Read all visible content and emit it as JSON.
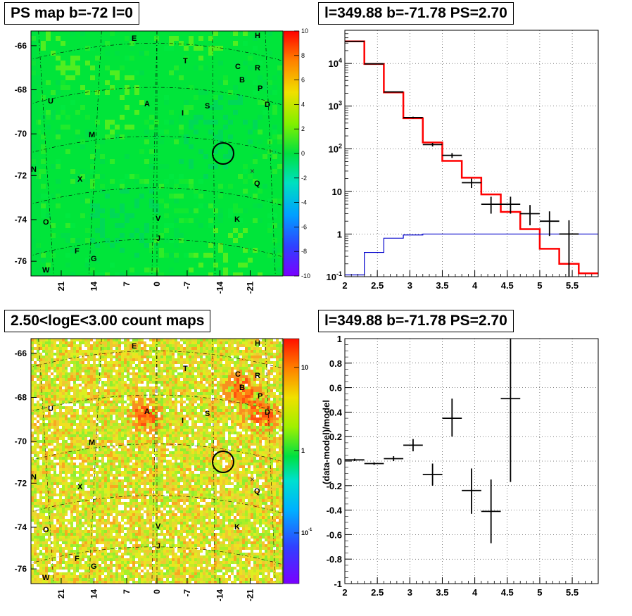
{
  "panels": {
    "ps_map_title": "PS map b=-72 l=0",
    "count_map_title": "2.50<logE<3.00 count maps",
    "spectrum_title": "l=349.88 b=-71.78 PS=2.70",
    "residual_title": "l=349.88 b=-71.78 PS=2.70"
  },
  "chart_data": [
    {
      "name": "ps_map",
      "type": "heatmap",
      "title": "PS map b=-72 l=0",
      "y_ticks": [
        "-66",
        "-68",
        "-70",
        "-72",
        "-74",
        "-76"
      ],
      "x_ticks": [
        "21",
        "14",
        "7",
        "0",
        "-7",
        "-14",
        "-21"
      ],
      "colorbar": {
        "min": -10,
        "max": 10,
        "ticks": [
          "10",
          "8",
          "6",
          "4",
          "2",
          "0",
          "-2",
          "-4",
          "-6",
          "-8",
          "-10"
        ]
      },
      "source_labels": [
        "E",
        "H",
        "T",
        "C",
        "R",
        "B",
        "P",
        "D",
        "U",
        "A",
        "I",
        "S",
        "M",
        "N",
        "X",
        "Q",
        "O",
        "V",
        "K",
        "J",
        "F",
        "G",
        "W"
      ],
      "marker": {
        "l": 349.88,
        "b": -71.78
      }
    },
    {
      "name": "spectrum",
      "type": "line",
      "title": "l=349.88 b=-71.78 PS=2.70",
      "xlim": [
        2,
        5.9
      ],
      "x_ticks": [
        "2",
        "2.5",
        "3",
        "3.5",
        "4",
        "4.5",
        "5",
        "5.5"
      ],
      "y_scale": "log",
      "ylim": [
        0.1,
        60000
      ],
      "y_ticks": [
        "10^-1",
        "1",
        "10",
        "10^2",
        "10^3",
        "10^4"
      ],
      "grid": true,
      "series": [
        {
          "color": "#ff0000",
          "style": "step",
          "edges": [
            2.0,
            2.3,
            2.6,
            2.9,
            3.2,
            3.5,
            3.8,
            4.1,
            4.4,
            4.7,
            5.0,
            5.3,
            5.6,
            5.9
          ],
          "values": [
            33000,
            9700,
            2100,
            520,
            140,
            52,
            21,
            8.5,
            3.3,
            1.3,
            0.45,
            0.2,
            0.12
          ]
        },
        {
          "color": "#0000cc",
          "style": "step",
          "edges": [
            2.0,
            2.3,
            2.6,
            2.9,
            3.2,
            3.5,
            3.8,
            4.1,
            4.4,
            4.7,
            5.0,
            5.3,
            5.6,
            5.9
          ],
          "values": [
            0.11,
            0.37,
            0.8,
            0.95,
            1.0,
            1.0,
            1.0,
            1.0,
            1.0,
            1.0,
            1.0,
            1.0,
            1.0
          ]
        },
        {
          "color": "#000000",
          "style": "errorbar",
          "points": [
            {
              "x": 2.15,
              "y": 33000,
              "xerr": 0.15,
              "ylo": 32500,
              "yhi": 33500
            },
            {
              "x": 2.45,
              "y": 9800,
              "xerr": 0.15,
              "ylo": 9600,
              "yhi": 10000
            },
            {
              "x": 2.75,
              "y": 2150,
              "xerr": 0.15,
              "ylo": 2100,
              "yhi": 2200
            },
            {
              "x": 3.05,
              "y": 540,
              "xerr": 0.15,
              "ylo": 515,
              "yhi": 565
            },
            {
              "x": 3.35,
              "y": 125,
              "xerr": 0.15,
              "ylo": 113,
              "yhi": 137
            },
            {
              "x": 3.65,
              "y": 70,
              "xerr": 0.15,
              "ylo": 61,
              "yhi": 79
            },
            {
              "x": 3.95,
              "y": 16,
              "xerr": 0.15,
              "ylo": 12,
              "yhi": 20
            },
            {
              "x": 4.25,
              "y": 5,
              "xerr": 0.15,
              "ylo": 3,
              "yhi": 7.5
            },
            {
              "x": 4.55,
              "y": 5,
              "xerr": 0.15,
              "ylo": 3,
              "yhi": 7.5
            },
            {
              "x": 4.85,
              "y": 3,
              "xerr": 0.15,
              "ylo": 1.6,
              "yhi": 4.8
            },
            {
              "x": 5.15,
              "y": 2,
              "xerr": 0.15,
              "ylo": 0.9,
              "yhi": 3.4
            },
            {
              "x": 5.45,
              "y": 1,
              "xerr": 0.15,
              "ylo": 0.1,
              "yhi": 2.1
            }
          ]
        }
      ]
    },
    {
      "name": "count_map",
      "type": "heatmap",
      "title": "2.50<logE<3.00 count maps",
      "y_ticks": [
        "-66",
        "-68",
        "-70",
        "-72",
        "-74",
        "-76"
      ],
      "x_ticks": [
        "21",
        "14",
        "7",
        "0",
        "-7",
        "-14",
        "-21"
      ],
      "colorbar": {
        "scale": "log",
        "ticks": [
          "10",
          "1",
          "10^-1"
        ]
      },
      "source_labels": [
        "E",
        "H",
        "T",
        "C",
        "R",
        "B",
        "P",
        "D",
        "U",
        "A",
        "I",
        "S",
        "M",
        "N",
        "X",
        "Q",
        "O",
        "V",
        "K",
        "J",
        "F",
        "G",
        "W"
      ],
      "marker": {
        "l": 349.88,
        "b": -71.78
      }
    },
    {
      "name": "residual",
      "type": "scatter",
      "title": "l=349.88 b=-71.78 PS=2.70",
      "ylabel": "(data-model)/model",
      "xlim": [
        2,
        5.9
      ],
      "ylim": [
        -1,
        1
      ],
      "x_ticks": [
        "2",
        "2.5",
        "3",
        "3.5",
        "4",
        "4.5",
        "5",
        "5.5"
      ],
      "y_ticks": [
        "1",
        "0.8",
        "0.6",
        "0.4",
        "0.2",
        "0",
        "-0.2",
        "-0.4",
        "-0.6",
        "-0.8",
        "-1"
      ],
      "grid": true,
      "points": [
        {
          "x": 2.15,
          "y": 0.01,
          "xerr": 0.15,
          "ylo": 0.0,
          "yhi": 0.02
        },
        {
          "x": 2.45,
          "y": -0.02,
          "xerr": 0.15,
          "ylo": -0.03,
          "yhi": -0.01
        },
        {
          "x": 2.75,
          "y": 0.02,
          "xerr": 0.15,
          "ylo": 0.0,
          "yhi": 0.04
        },
        {
          "x": 3.05,
          "y": 0.13,
          "xerr": 0.15,
          "ylo": 0.08,
          "yhi": 0.18
        },
        {
          "x": 3.35,
          "y": -0.11,
          "xerr": 0.15,
          "ylo": -0.2,
          "yhi": -0.02
        },
        {
          "x": 3.65,
          "y": 0.35,
          "xerr": 0.15,
          "ylo": 0.2,
          "yhi": 0.51
        },
        {
          "x": 3.95,
          "y": -0.24,
          "xerr": 0.15,
          "ylo": -0.43,
          "yhi": -0.06
        },
        {
          "x": 4.25,
          "y": -0.41,
          "xerr": 0.15,
          "ylo": -0.67,
          "yhi": -0.15
        },
        {
          "x": 4.55,
          "y": 0.51,
          "xerr": 0.15,
          "ylo": -0.17,
          "yhi": 1.0
        }
      ]
    }
  ]
}
